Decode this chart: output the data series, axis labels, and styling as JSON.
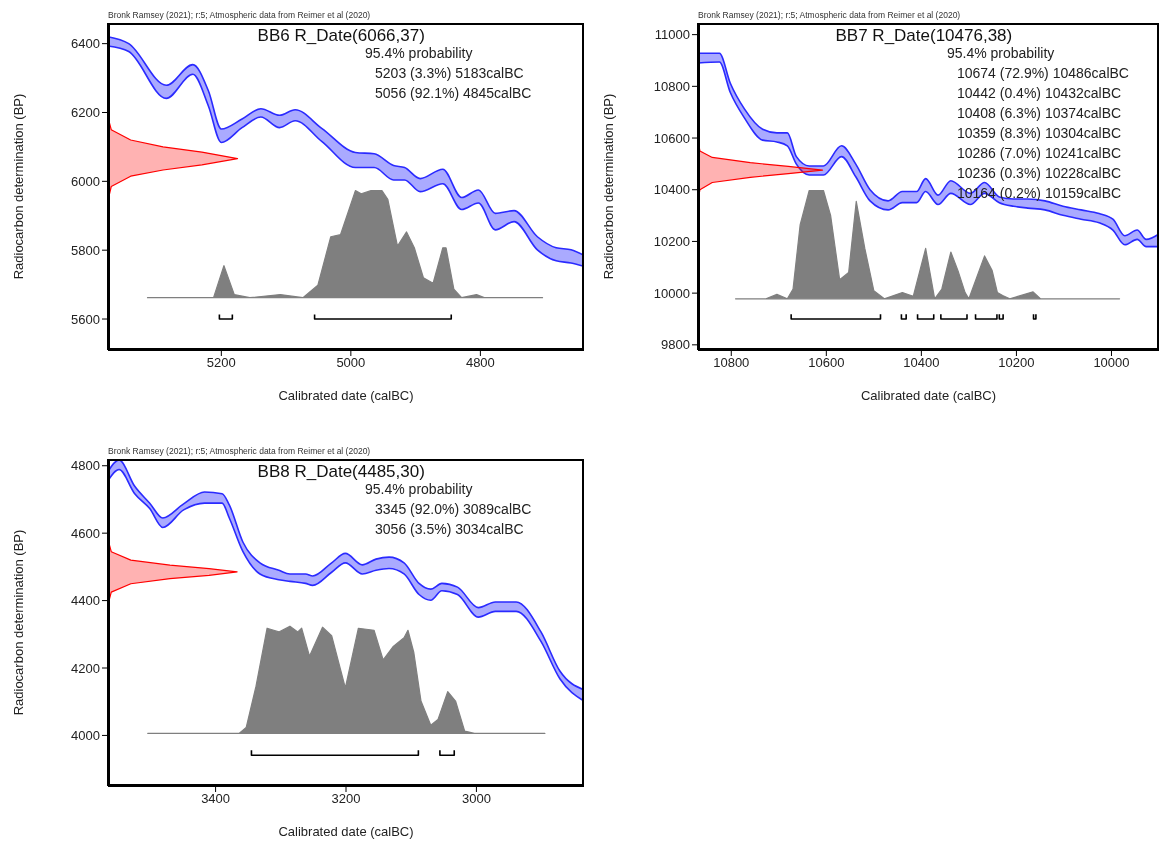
{
  "chart_data": [
    {
      "type": "line",
      "title": "BB6 R_Date(6066,37)",
      "xlabel": "Calibrated date (calBC)",
      "ylabel": "Radiocarbon determination (BP)",
      "annotations": [
        "Bronk Ramsey (2021); r:5; Atmospheric data from Reimer et al (2020)",
        "95.4% probability",
        "5203 (3.3%) 5183calBC",
        "5056 (92.1%) 4845calBC"
      ],
      "xlim": [
        5375,
        4640
      ],
      "xticks": [
        5200,
        5000,
        4800
      ],
      "ylim": [
        5510,
        6460
      ],
      "yticks": [
        5600,
        5800,
        6000,
        6200,
        6400
      ],
      "series": [
        {
          "color": "#2a2aff",
          "x": [
            5375,
            5343,
            5285,
            5244,
            5220,
            5200,
            5168,
            5139,
            5110,
            5086,
            5045,
            4993,
            4964,
            4934,
            4917,
            4893,
            4858,
            4829,
            4803,
            4777,
            4748,
            4712,
            4683,
            4660,
            4640
          ],
          "values": [
            6420,
            6400,
            6279,
            6339,
            6263,
            6152,
            6181,
            6211,
            6192,
            6208,
            6154,
            6084,
            6080,
            6046,
            6040,
            6008,
            6035,
            5953,
            5975,
            5907,
            5915,
            5839,
            5807,
            5801,
            5785
          ],
          "lower": [
            6393,
            6377,
            6241,
            6311,
            6219,
            6113,
            6156,
            6187,
            6156,
            6176,
            6116,
            6040,
            6040,
            6004,
            6004,
            5970,
            5993,
            5918,
            5937,
            5859,
            5883,
            5801,
            5769,
            5763,
            5753
          ],
          "upper": [
            6420,
            6400,
            6279,
            6339,
            6263,
            6152,
            6181,
            6211,
            6192,
            6208,
            6154,
            6084,
            6080,
            6046,
            6040,
            6008,
            6035,
            5953,
            5975,
            5907,
            5915,
            5839,
            5807,
            5801,
            5785
          ]
        },
        {
          "color": "#2a2aff",
          "x": [
            5375,
            5343,
            5285,
            5244,
            5220,
            5200,
            5168,
            5139,
            5110,
            5086,
            5045,
            4993,
            4964,
            4934,
            4917,
            4893,
            4858,
            4829,
            4803,
            4777,
            4748,
            4712,
            4683,
            4660,
            4640
          ],
          "values": [
            6393,
            6377,
            6241,
            6311,
            6219,
            6113,
            6156,
            6187,
            6156,
            6176,
            6116,
            6040,
            6040,
            6004,
            6004,
            5970,
            5993,
            5918,
            5937,
            5859,
            5883,
            5801,
            5769,
            5763,
            5753
          ]
        },
        {
          "type": "area",
          "color": "#ff0000",
          "x": [
            5375,
            5370,
            5340,
            5290,
            5230,
            5175,
            5230,
            5290,
            5340,
            5370,
            5375
          ],
          "values": [
            6186,
            6150,
            6120,
            6100,
            6085,
            6066,
            6048,
            6033,
            6015,
            5985,
            5945
          ]
        },
        {
          "type": "area",
          "color": "#7f7f7f",
          "x": [
            5314,
            5212,
            5196,
            5180,
            5156,
            5109,
            5074,
            5051,
            5031,
            5016,
            4993,
            4984,
            4969,
            4952,
            4943,
            4928,
            4914,
            4902,
            4888,
            4873,
            4858,
            4853,
            4841,
            4829,
            4806,
            4794,
            4704
          ],
          "values": [
            5662,
            5662,
            5755,
            5671,
            5662,
            5671,
            5662,
            5698,
            5839,
            5845,
            5973,
            5964,
            5973,
            5973,
            5948,
            5812,
            5853,
            5807,
            5720,
            5704,
            5807,
            5807,
            5687,
            5662,
            5671,
            5662,
            5662
          ]
        },
        {
          "color": "#000000",
          "x": [
            5203,
            5203,
            5183,
            5183,
            5120,
            5056,
            5056,
            4845,
            4845
          ],
          "values": [
            5613,
            5600,
            5600,
            5613,
            null,
            5613,
            5600,
            5600,
            5613
          ]
        }
      ]
    },
    {
      "type": "line",
      "title": "BB7 R_Date(10476,38)",
      "xlabel": "Calibrated date (calBC)",
      "ylabel": "Radiocarbon determination (BP)",
      "annotations": [
        "Bronk Ramsey (2021); r:5; Atmospheric data from Reimer et al (2020)",
        "95.4% probability",
        "10674 (72.9%) 10486calBC",
        "10442 (0.4%) 10432calBC",
        "10408 (6.3%) 10374calBC",
        "10359 (8.3%) 10304calBC",
        "10286 (7.0%) 10241calBC",
        "10236 (0.3%) 10228calBC",
        "10164 (0.2%) 10159calBC"
      ],
      "xlim": [
        10870,
        9900
      ],
      "xticks": [
        10800,
        10600,
        10400,
        10200,
        10000
      ],
      "ylim": [
        9780,
        11045
      ],
      "yticks": [
        9800,
        10000,
        10200,
        10400,
        10600,
        10800,
        11000
      ],
      "series": [
        {
          "color": "#2a2aff",
          "x": [
            10870,
            10825,
            10802,
            10772,
            10734,
            10704,
            10682,
            10663,
            10636,
            10606,
            10568,
            10538,
            10508,
            10470,
            10440,
            10410,
            10391,
            10365,
            10338,
            10297,
            10267,
            10236,
            10206,
            10176,
            10140,
            10102,
            10064,
            10026,
            9997,
            9972,
            9946,
            9927,
            9900
          ],
          "values": [
            10928,
            10928,
            10812,
            10712,
            10634,
            10620,
            10620,
            10528,
            10492,
            10492,
            10570,
            10499,
            10400,
            10357,
            10393,
            10393,
            10443,
            10379,
            10435,
            10386,
            10428,
            10372,
            10364,
            10364,
            10357,
            10336,
            10322,
            10308,
            10286,
            10222,
            10244,
            10208,
            10229
          ],
          "lower": [
            10890,
            10894,
            10776,
            10677,
            10592,
            10585,
            10570,
            10499,
            10457,
            10457,
            10528,
            10450,
            10357,
            10322,
            10350,
            10350,
            10393,
            10343,
            10386,
            10343,
            10386,
            10350,
            10336,
            10329,
            10322,
            10301,
            10286,
            10272,
            10244,
            10187,
            10208,
            10180,
            10180
          ],
          "upper": [
            10928,
            10928,
            10812,
            10712,
            10634,
            10620,
            10620,
            10528,
            10492,
            10492,
            10570,
            10499,
            10400,
            10357,
            10393,
            10393,
            10443,
            10379,
            10435,
            10386,
            10428,
            10372,
            10364,
            10364,
            10357,
            10336,
            10322,
            10308,
            10286,
            10222,
            10244,
            10208,
            10229
          ]
        },
        {
          "color": "#2a2aff",
          "x": [
            10870,
            10825,
            10802,
            10772,
            10734,
            10704,
            10682,
            10663,
            10636,
            10606,
            10568,
            10538,
            10508,
            10470,
            10440,
            10410,
            10391,
            10365,
            10338,
            10297,
            10267,
            10236,
            10206,
            10176,
            10140,
            10102,
            10064,
            10026,
            9997,
            9972,
            9946,
            9927,
            9900
          ],
          "values": [
            10890,
            10894,
            10776,
            10677,
            10592,
            10585,
            10570,
            10499,
            10457,
            10457,
            10528,
            10450,
            10357,
            10322,
            10350,
            10350,
            10393,
            10343,
            10386,
            10343,
            10386,
            10350,
            10336,
            10329,
            10322,
            10301,
            10286,
            10272,
            10244,
            10187,
            10208,
            10180,
            10180
          ]
        },
        {
          "type": "area",
          "color": "#ff0000",
          "x": [
            10870,
            10866,
            10840,
            10760,
            10680,
            10608,
            10680,
            10760,
            10840,
            10866,
            10870
          ],
          "values": [
            10592,
            10550,
            10525,
            10505,
            10490,
            10476,
            10462,
            10448,
            10428,
            10400,
            10357
          ]
        },
        {
          "type": "area",
          "color": "#7f7f7f",
          "x": [
            10791,
            10727,
            10704,
            10682,
            10670,
            10655,
            10636,
            10606,
            10591,
            10572,
            10553,
            10537,
            10519,
            10500,
            10478,
            10440,
            10417,
            10391,
            10372,
            10357,
            10338,
            10323,
            10308,
            10300,
            10267,
            10251,
            10240,
            10229,
            10214,
            10165,
            10149,
            9983
          ],
          "values": [
            9978,
            9978,
            9995,
            9978,
            10016,
            10265,
            10397,
            10397,
            10301,
            10052,
            10080,
            10355,
            10173,
            10009,
            9978,
            10002,
            9988,
            10173,
            9978,
            10016,
            10159,
            10087,
            10002,
            9978,
            10144,
            10087,
            10002,
            9991,
            9978,
            10005,
            9978,
            9978
          ]
        },
        {
          "color": "#000000",
          "x": [
            10674,
            10674,
            10486,
            10486,
            10460,
            10442,
            10442,
            10432,
            10432,
            10420,
            10408,
            10408,
            10374,
            10374,
            10365,
            10359,
            10359,
            10304,
            10304,
            10295,
            10286,
            10286,
            10241,
            10241,
            10238,
            10236,
            10236,
            10228,
            10228,
            10200,
            10164,
            10164,
            10159,
            10159
          ],
          "values": [
            9918,
            9900,
            9900,
            9918,
            null,
            9918,
            9900,
            9900,
            9918,
            null,
            9918,
            9900,
            9900,
            9918,
            null,
            9918,
            9900,
            9900,
            9918,
            null,
            9918,
            9900,
            9900,
            9918,
            null,
            9918,
            9900,
            9900,
            9918,
            null,
            9918,
            9900,
            9900,
            9918
          ]
        }
      ]
    },
    {
      "type": "line",
      "title": "BB8 R_Date(4485,30)",
      "xlabel": "Calibrated date (calBC)",
      "ylabel": "Radiocarbon determination (BP)",
      "annotations": [
        "Bronk Ramsey (2021); r:5; Atmospheric data from Reimer et al (2020)",
        "95.4% probability",
        "3345 (92.0%) 3089calBC",
        "3056 (3.5%) 3034calBC"
      ],
      "xlim": [
        3565,
        2835
      ],
      "xticks": [
        3400,
        3200,
        3000
      ],
      "ylim": [
        3850,
        4820
      ],
      "yticks": [
        4000,
        4200,
        4400,
        4600,
        4800
      ],
      "series": [
        {
          "color": "#2a2aff",
          "x": [
            3565,
            3548,
            3524,
            3501,
            3481,
            3449,
            3417,
            3390,
            3379,
            3358,
            3332,
            3303,
            3286,
            3262,
            3251,
            3222,
            3201,
            3175,
            3154,
            3134,
            3111,
            3088,
            3070,
            3053,
            3029,
            2997,
            2971,
            2939,
            2901,
            2872,
            2835
          ],
          "values": [
            4783,
            4817,
            4739,
            4689,
            4645,
            4687,
            4722,
            4717,
            4684,
            4573,
            4512,
            4490,
            4479,
            4479,
            4473,
            4512,
            4540,
            4506,
            4523,
            4529,
            4512,
            4451,
            4434,
            4451,
            4440,
            4379,
            4396,
            4396,
            4307,
            4191,
            4135
          ],
          "lower": [
            4756,
            4789,
            4717,
            4673,
            4617,
            4669,
            4689,
            4689,
            4645,
            4545,
            4479,
            4462,
            4457,
            4451,
            4445,
            4484,
            4512,
            4479,
            4490,
            4495,
            4479,
            4418,
            4401,
            4429,
            4418,
            4351,
            4368,
            4368,
            4279,
            4168,
            4102
          ],
          "upper": [
            4783,
            4817,
            4739,
            4689,
            4645,
            4687,
            4722,
            4717,
            4684,
            4573,
            4512,
            4490,
            4479,
            4479,
            4473,
            4512,
            4540,
            4506,
            4523,
            4529,
            4512,
            4451,
            4434,
            4451,
            4440,
            4379,
            4396,
            4396,
            4307,
            4191,
            4135
          ]
        },
        {
          "color": "#2a2aff",
          "x": [
            3565,
            3548,
            3524,
            3501,
            3481,
            3449,
            3417,
            3390,
            3379,
            3358,
            3332,
            3303,
            3286,
            3262,
            3251,
            3222,
            3201,
            3175,
            3154,
            3134,
            3111,
            3088,
            3070,
            3053,
            3029,
            2997,
            2971,
            2939,
            2901,
            2872,
            2835
          ],
          "values": [
            4756,
            4789,
            4717,
            4673,
            4617,
            4669,
            4689,
            4689,
            4645,
            4545,
            4479,
            4462,
            4457,
            4451,
            4445,
            4484,
            4512,
            4479,
            4490,
            4495,
            4479,
            4418,
            4401,
            4429,
            4418,
            4351,
            4368,
            4368,
            4279,
            4168,
            4102
          ]
        },
        {
          "type": "area",
          "color": "#ff0000",
          "x": [
            3565,
            3560,
            3530,
            3470,
            3410,
            3367,
            3410,
            3470,
            3530,
            3560,
            3565
          ],
          "values": [
            4581,
            4545,
            4520,
            4505,
            4495,
            4485,
            4475,
            4465,
            4450,
            4425,
            4388
          ]
        },
        {
          "type": "area",
          "color": "#7f7f7f",
          "x": [
            3504,
            3364,
            3353,
            3338,
            3321,
            3303,
            3286,
            3274,
            3268,
            3256,
            3236,
            3222,
            3201,
            3181,
            3157,
            3143,
            3128,
            3111,
            3105,
            3096,
            3085,
            3070,
            3059,
            3044,
            3032,
            3018,
            3003,
            2895
          ],
          "values": [
            4006,
            4006,
            4024,
            4146,
            4318,
            4307,
            4324,
            4307,
            4318,
            4235,
            4321,
            4296,
            4141,
            4318,
            4312,
            4224,
            4263,
            4290,
            4312,
            4246,
            4102,
            4030,
            4047,
            4130,
            4102,
            4013,
            4006,
            4006
          ]
        },
        {
          "color": "#000000",
          "x": [
            3345,
            3345,
            3089,
            3089,
            3070,
            3056,
            3056,
            3034,
            3034
          ],
          "values": [
            3956,
            3941,
            3941,
            3956,
            null,
            3956,
            3941,
            3941,
            3956
          ]
        }
      ]
    }
  ]
}
